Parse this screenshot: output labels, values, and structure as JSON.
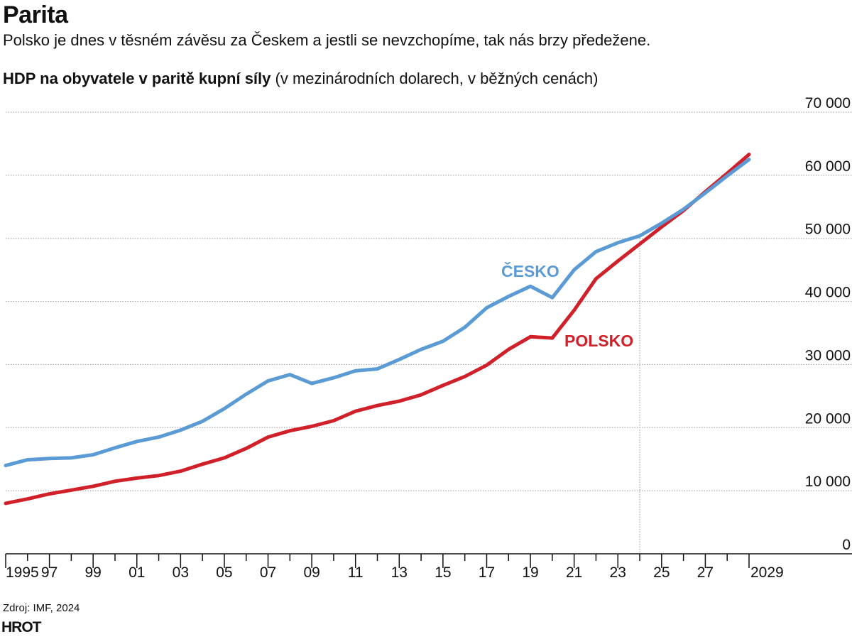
{
  "header": {
    "title": "Parita",
    "subtitle": "Polsko je dnes v těsném závěsu za Českem a jestli se nevzchopíme, tak nás brzy předežene.",
    "chart_title_bold": "HDP na obyvatele v paritě kupní síly",
    "chart_title_rest": " (v mezinárodních dolarech, v běžných cenách)"
  },
  "footer": {
    "source": "Zdroj: IMF, 2024",
    "logo": "HROT"
  },
  "colors": {
    "cesko": "#5b9bd5",
    "polsko": "#d0202a",
    "grid": "#999999",
    "axis": "#111111"
  },
  "chart_data": {
    "type": "line",
    "title": "HDP na obyvatele v paritě kupní síly (v mezinárodních dolarech, v běžných cenách)",
    "x": [
      1995,
      1996,
      1997,
      1998,
      1999,
      2000,
      2001,
      2002,
      2003,
      2004,
      2005,
      2006,
      2007,
      2008,
      2009,
      2010,
      2011,
      2012,
      2013,
      2014,
      2015,
      2016,
      2017,
      2018,
      2019,
      2020,
      2021,
      2022,
      2023,
      2024,
      2025,
      2026,
      2027,
      2028,
      2029
    ],
    "x_tick_labels": [
      "1995",
      "97",
      "99",
      "01",
      "03",
      "05",
      "07",
      "09",
      "11",
      "13",
      "15",
      "17",
      "19",
      "21",
      "23",
      "25",
      "27",
      "2029"
    ],
    "y_ticks": [
      0,
      10000,
      20000,
      30000,
      40000,
      50000,
      60000,
      70000
    ],
    "y_tick_labels": [
      "0",
      "10 000",
      "20 000",
      "30 000",
      "40 000",
      "50 000",
      "60 000",
      "70 000"
    ],
    "ylim": [
      0,
      70000
    ],
    "xlim": [
      1995,
      2029
    ],
    "grid": "horizontal",
    "axis_position": "right",
    "forecast_divider_x": 2024,
    "series": [
      {
        "name": "ČESKO",
        "color": "#5b9bd5",
        "values": [
          14000,
          14900,
          15100,
          15200,
          15700,
          16800,
          17800,
          18500,
          19600,
          21000,
          23000,
          25300,
          27400,
          28400,
          27000,
          27900,
          29000,
          29300,
          30800,
          32400,
          33700,
          35900,
          39000,
          40800,
          42400,
          40600,
          45000,
          47900,
          49300,
          50400,
          52400,
          54600,
          57200,
          59900,
          62500
        ]
      },
      {
        "name": "POLSKO",
        "color": "#d0202a",
        "values": [
          8000,
          8700,
          9500,
          10100,
          10700,
          11500,
          12000,
          12400,
          13100,
          14200,
          15200,
          16700,
          18500,
          19500,
          20200,
          21100,
          22600,
          23500,
          24200,
          25200,
          26700,
          28100,
          29900,
          32400,
          34400,
          34200,
          38600,
          43600,
          46400,
          49100,
          51800,
          54400,
          57400,
          60300,
          63300
        ]
      }
    ]
  }
}
